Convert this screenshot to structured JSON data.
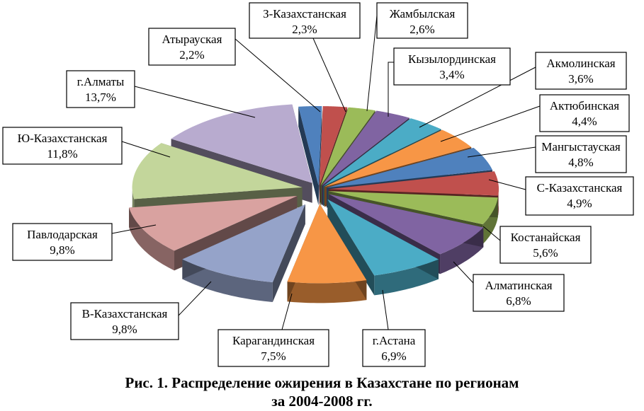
{
  "chart_data": {
    "type": "pie",
    "title": "Рис. 1. Распределение ожирения в Казахстане по регионам",
    "subtitle": "за 2004-2008 гг.",
    "slices": [
      {
        "name": "З-Казахстанская",
        "value": 2.3,
        "label": "2,3%",
        "color": "#c0504d"
      },
      {
        "name": "Жамбылская",
        "value": 2.6,
        "label": "2,6%",
        "color": "#9bbb59"
      },
      {
        "name": "Кызылординская",
        "value": 3.4,
        "label": "3,4%",
        "color": "#8064a2"
      },
      {
        "name": "Акмолинская",
        "value": 3.6,
        "label": "3,6%",
        "color": "#4bacc6"
      },
      {
        "name": "Актюбинская",
        "value": 4.4,
        "label": "4,4%",
        "color": "#f79646"
      },
      {
        "name": "Мангыстауская",
        "value": 4.8,
        "label": "4,8%",
        "color": "#4f81bd"
      },
      {
        "name": "С-Казахстанская",
        "value": 4.9,
        "label": "4,9%",
        "color": "#c0504d"
      },
      {
        "name": "Костанайская",
        "value": 5.6,
        "label": "5,6%",
        "color": "#9bbb59"
      },
      {
        "name": "Алматинская",
        "value": 6.8,
        "label": "6,8%",
        "color": "#8064a2"
      },
      {
        "name": "г.Астана",
        "value": 6.9,
        "label": "6,9%",
        "color": "#4bacc6"
      },
      {
        "name": "Карагандинская",
        "value": 7.5,
        "label": "7,5%",
        "color": "#f79646"
      },
      {
        "name": "В-Казахстанская",
        "value": 9.8,
        "label": "9,8%",
        "color": "#95a3c9"
      },
      {
        "name": "Павлодарская",
        "value": 9.8,
        "label": "9,8%",
        "color": "#d9a2a0"
      },
      {
        "name": "Ю-Казахстанская",
        "value": 11.8,
        "label": "11,8%",
        "color": "#c3d69b"
      },
      {
        "name": "г.Алматы",
        "value": 13.7,
        "label": "13,7%",
        "color": "#b8abcf"
      },
      {
        "name": "Атырауская",
        "value": 2.2,
        "label": "2,2%",
        "color": "#4f81bd"
      }
    ]
  }
}
